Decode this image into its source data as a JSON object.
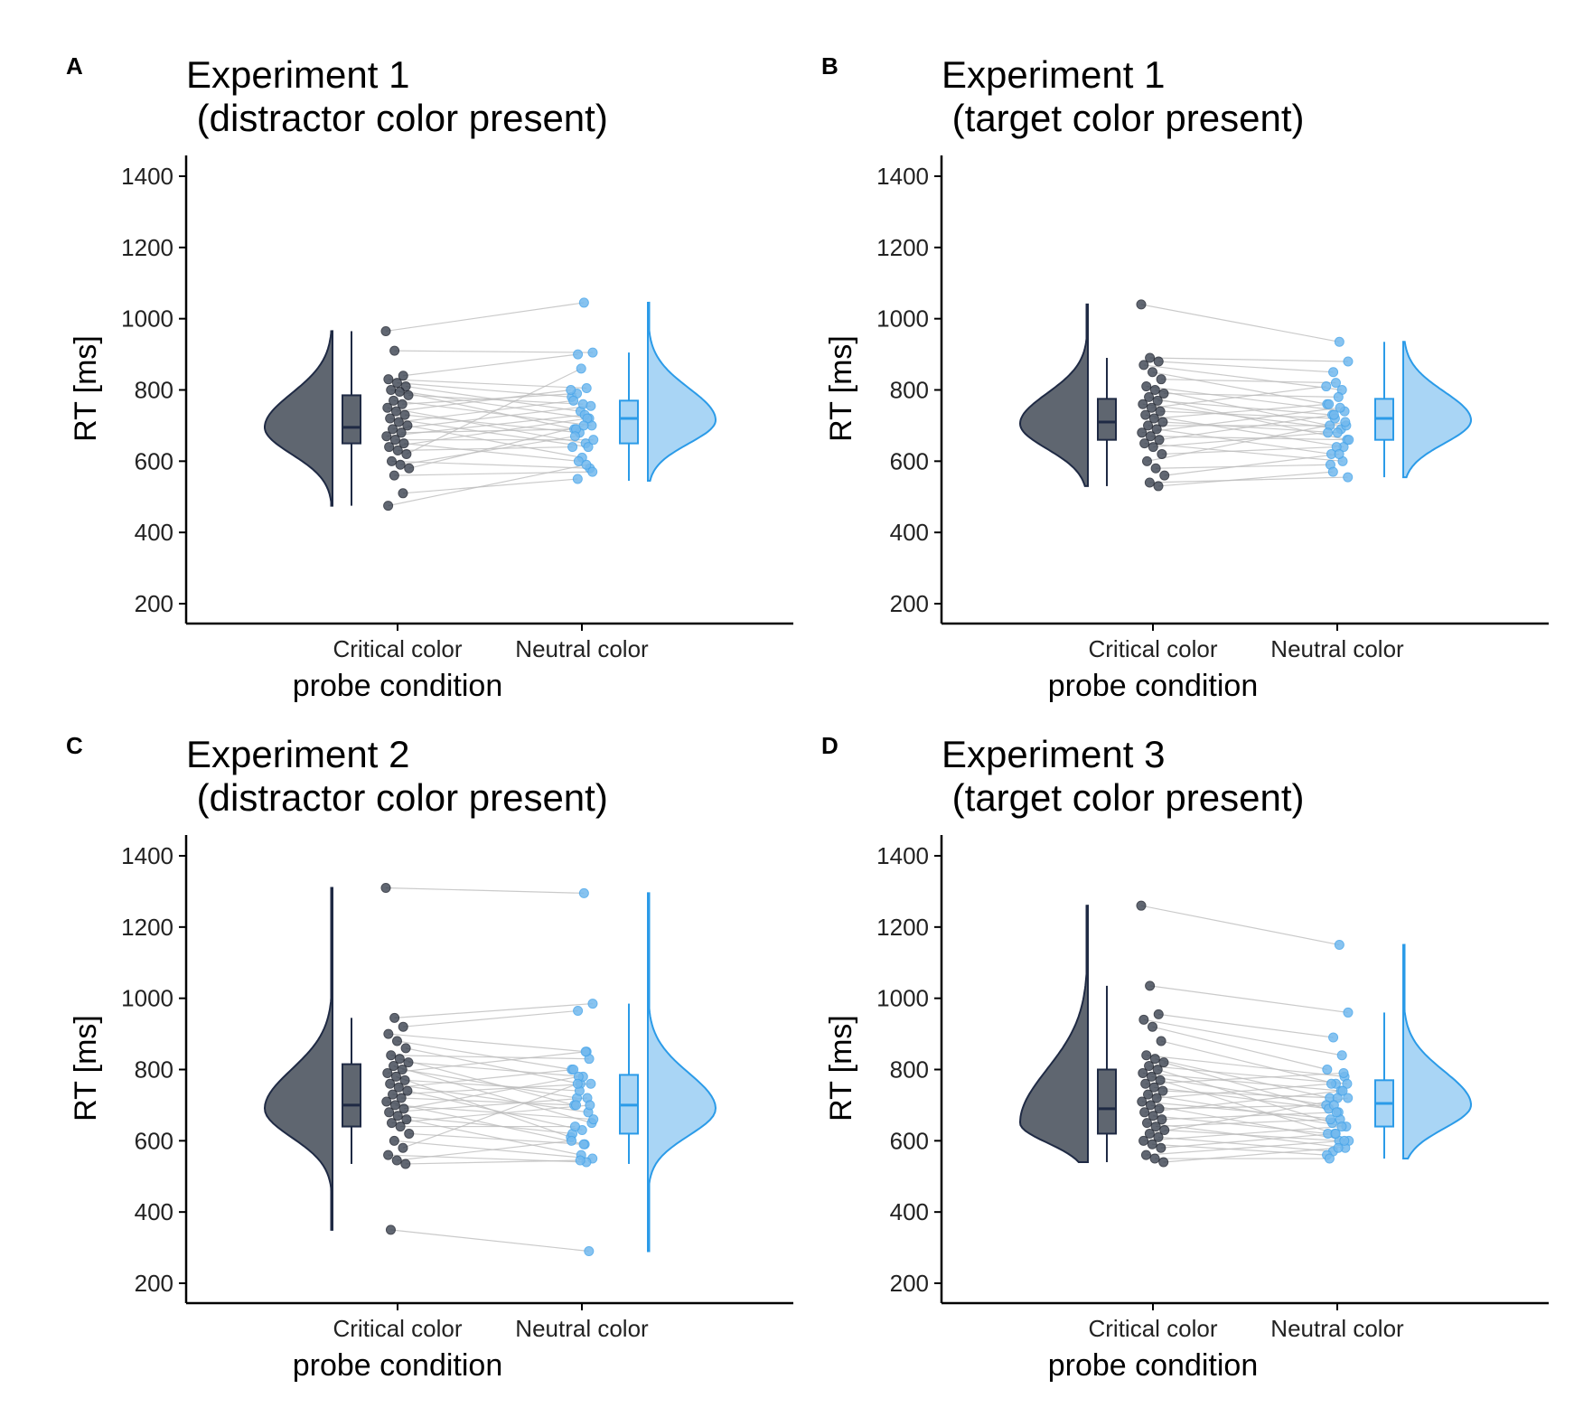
{
  "colors": {
    "critical": "#1f2a44",
    "critical_fill": "#5f6670",
    "neutral": "#2b9be8",
    "neutral_fill": "#a9d5f5",
    "link": "#bdbdbd"
  },
  "chart_data": [
    {
      "type": "raincloud",
      "panel": "A",
      "title_line1": "Experiment 1",
      "title_line2": " (distractor color present)",
      "xlabel": "probe condition",
      "ylabel": "RT [ms]",
      "categories": [
        "Critical color",
        "Neutral color"
      ],
      "ylim": [
        150,
        1460
      ],
      "yticks": [
        200,
        400,
        600,
        800,
        1000,
        1200,
        1400
      ],
      "boxes": [
        {
          "category": "Critical color",
          "min": 475,
          "q1": 650,
          "median": 695,
          "q3": 785,
          "max": 965
        },
        {
          "category": "Neutral color",
          "min": 545,
          "q1": 650,
          "median": 720,
          "q3": 770,
          "max": 905
        }
      ],
      "density": [
        {
          "category": "Critical color",
          "from": 475,
          "to": 965,
          "mode": 695,
          "spread_low": 75,
          "spread_high": 95
        },
        {
          "category": "Neutral color",
          "from": 545,
          "to": 1045,
          "mode": 715,
          "spread_low": 65,
          "spread_high": 90
        }
      ],
      "pairs": [
        [
          965,
          1045
        ],
        [
          910,
          905
        ],
        [
          840,
          900
        ],
        [
          830,
          805
        ],
        [
          820,
          780
        ],
        [
          810,
          740
        ],
        [
          800,
          720
        ],
        [
          795,
          690
        ],
        [
          785,
          760
        ],
        [
          770,
          700
        ],
        [
          760,
          790
        ],
        [
          750,
          650
        ],
        [
          740,
          800
        ],
        [
          730,
          680
        ],
        [
          720,
          640
        ],
        [
          710,
          770
        ],
        [
          700,
          610
        ],
        [
          690,
          755
        ],
        [
          680,
          690
        ],
        [
          670,
          730
        ],
        [
          660,
          660
        ],
        [
          650,
          600
        ],
        [
          640,
          720
        ],
        [
          630,
          640
        ],
        [
          620,
          860
        ],
        [
          600,
          580
        ],
        [
          590,
          670
        ],
        [
          580,
          700
        ],
        [
          560,
          570
        ],
        [
          510,
          550
        ],
        [
          475,
          590
        ]
      ]
    },
    {
      "type": "raincloud",
      "panel": "B",
      "title_line1": "Experiment 1",
      "title_line2": " (target color present)",
      "xlabel": "probe condition",
      "ylabel": "RT [ms]",
      "categories": [
        "Critical color",
        "Neutral color"
      ],
      "ylim": [
        150,
        1460
      ],
      "yticks": [
        200,
        400,
        600,
        800,
        1000,
        1200,
        1400
      ],
      "boxes": [
        {
          "category": "Critical color",
          "min": 530,
          "q1": 660,
          "median": 710,
          "q3": 775,
          "max": 890
        },
        {
          "category": "Neutral color",
          "min": 555,
          "q1": 660,
          "median": 720,
          "q3": 775,
          "max": 935
        }
      ],
      "density": [
        {
          "category": "Critical color",
          "from": 530,
          "to": 1040,
          "mode": 705,
          "spread_low": 70,
          "spread_high": 85
        },
        {
          "category": "Neutral color",
          "from": 555,
          "to": 935,
          "mode": 715,
          "spread_low": 65,
          "spread_high": 80
        }
      ],
      "pairs": [
        [
          1040,
          935
        ],
        [
          890,
          880
        ],
        [
          880,
          850
        ],
        [
          870,
          800
        ],
        [
          850,
          760
        ],
        [
          830,
          820
        ],
        [
          810,
          740
        ],
        [
          800,
          700
        ],
        [
          790,
          780
        ],
        [
          780,
          660
        ],
        [
          770,
          730
        ],
        [
          760,
          690
        ],
        [
          750,
          810
        ],
        [
          740,
          720
        ],
        [
          730,
          640
        ],
        [
          720,
          760
        ],
        [
          710,
          680
        ],
        [
          700,
          700
        ],
        [
          690,
          620
        ],
        [
          680,
          750
        ],
        [
          670,
          660
        ],
        [
          660,
          730
        ],
        [
          650,
          600
        ],
        [
          640,
          680
        ],
        [
          620,
          640
        ],
        [
          600,
          710
        ],
        [
          580,
          590
        ],
        [
          560,
          620
        ],
        [
          540,
          555
        ],
        [
          530,
          570
        ]
      ]
    },
    {
      "type": "raincloud",
      "panel": "C",
      "title_line1": "Experiment 2",
      "title_line2": " (distractor color present)",
      "xlabel": "probe condition",
      "ylabel": "RT [ms]",
      "categories": [
        "Critical color",
        "Neutral color"
      ],
      "ylim": [
        150,
        1460
      ],
      "yticks": [
        200,
        400,
        600,
        800,
        1000,
        1200,
        1400
      ],
      "boxes": [
        {
          "category": "Critical color",
          "min": 535,
          "q1": 640,
          "median": 700,
          "q3": 815,
          "max": 945
        },
        {
          "category": "Neutral color",
          "min": 535,
          "q1": 620,
          "median": 700,
          "q3": 785,
          "max": 985
        }
      ],
      "density": [
        {
          "category": "Critical color",
          "from": 350,
          "to": 1310,
          "mode": 690,
          "spread_low": 80,
          "spread_high": 110
        },
        {
          "category": "Neutral color",
          "from": 290,
          "to": 1295,
          "mode": 690,
          "spread_low": 75,
          "spread_high": 100
        }
      ],
      "pairs": [
        [
          1310,
          1295
        ],
        [
          945,
          985
        ],
        [
          920,
          965
        ],
        [
          900,
          850
        ],
        [
          880,
          800
        ],
        [
          860,
          760
        ],
        [
          840,
          830
        ],
        [
          830,
          700
        ],
        [
          820,
          780
        ],
        [
          810,
          650
        ],
        [
          800,
          720
        ],
        [
          790,
          850
        ],
        [
          780,
          610
        ],
        [
          770,
          740
        ],
        [
          760,
          680
        ],
        [
          750,
          800
        ],
        [
          740,
          630
        ],
        [
          730,
          760
        ],
        [
          720,
          700
        ],
        [
          710,
          590
        ],
        [
          700,
          660
        ],
        [
          690,
          780
        ],
        [
          680,
          720
        ],
        [
          670,
          620
        ],
        [
          660,
          560
        ],
        [
          650,
          700
        ],
        [
          640,
          640
        ],
        [
          620,
          590
        ],
        [
          600,
          550
        ],
        [
          580,
          760
        ],
        [
          560,
          540
        ],
        [
          545,
          600
        ],
        [
          535,
          545
        ],
        [
          350,
          290
        ]
      ]
    },
    {
      "type": "raincloud",
      "panel": "D",
      "title_line1": "Experiment 3",
      "title_line2": " (target color present)",
      "xlabel": "probe condition",
      "ylabel": "RT [ms]",
      "categories": [
        "Critical color",
        "Neutral color"
      ],
      "ylim": [
        150,
        1460
      ],
      "yticks": [
        200,
        400,
        600,
        800,
        1000,
        1200,
        1400
      ],
      "boxes": [
        {
          "category": "Critical color",
          "min": 540,
          "q1": 620,
          "median": 690,
          "q3": 800,
          "max": 1035
        },
        {
          "category": "Neutral color",
          "min": 550,
          "q1": 640,
          "median": 705,
          "q3": 770,
          "max": 960
        }
      ],
      "density": [
        {
          "category": "Critical color",
          "from": 540,
          "to": 1260,
          "mode": 650,
          "spread_low": 55,
          "spread_high": 150
        },
        {
          "category": "Neutral color",
          "from": 550,
          "to": 1150,
          "mode": 700,
          "spread_low": 65,
          "spread_high": 95
        }
      ],
      "pairs": [
        [
          1260,
          1150
        ],
        [
          1035,
          960
        ],
        [
          955,
          890
        ],
        [
          940,
          840
        ],
        [
          920,
          800
        ],
        [
          880,
          760
        ],
        [
          840,
          780
        ],
        [
          830,
          720
        ],
        [
          820,
          680
        ],
        [
          810,
          760
        ],
        [
          800,
          650
        ],
        [
          790,
          740
        ],
        [
          780,
          700
        ],
        [
          770,
          620
        ],
        [
          760,
          790
        ],
        [
          750,
          690
        ],
        [
          740,
          720
        ],
        [
          730,
          640
        ],
        [
          720,
          760
        ],
        [
          710,
          660
        ],
        [
          700,
          600
        ],
        [
          690,
          700
        ],
        [
          680,
          740
        ],
        [
          670,
          620
        ],
        [
          660,
          680
        ],
        [
          650,
          580
        ],
        [
          640,
          660
        ],
        [
          630,
          600
        ],
        [
          620,
          720
        ],
        [
          610,
          570
        ],
        [
          600,
          640
        ],
        [
          590,
          560
        ],
        [
          580,
          620
        ],
        [
          560,
          600
        ],
        [
          550,
          550
        ],
        [
          540,
          580
        ]
      ]
    }
  ]
}
